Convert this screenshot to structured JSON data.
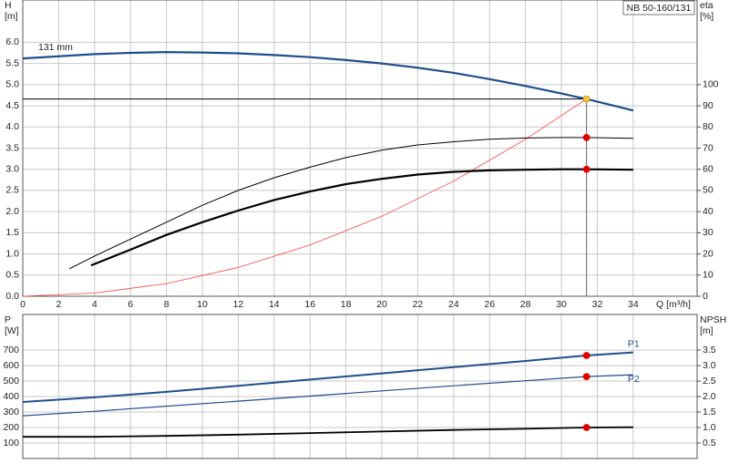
{
  "title": "NB 50-160/131",
  "chart_data": [
    {
      "type": "line",
      "ylabel": "H",
      "yunit": "[m]",
      "y2label": "eta",
      "y2unit": "[%]",
      "xlabel": "Q [m³/h]",
      "xlim": [
        0,
        37.56
      ],
      "xticks": [
        0,
        2,
        4,
        6,
        8,
        10,
        12,
        14,
        16,
        18,
        20,
        22,
        24,
        26,
        28,
        30,
        32,
        34
      ],
      "ylim": [
        0,
        7
      ],
      "yticks": [
        {
          "value": 0,
          "label": "0.0"
        },
        0.5,
        {
          "value": 1,
          "label": "1.0"
        },
        1.5,
        {
          "value": 2,
          "label": "2.0"
        },
        2.5,
        {
          "value": 3,
          "label": "3.0"
        },
        3.5,
        {
          "value": 4,
          "label": "4.0"
        },
        4.5,
        {
          "value": 5,
          "label": "5.0"
        },
        5.5,
        {
          "value": 6,
          "label": "6.0"
        }
      ],
      "y2lim": [
        0,
        140
      ],
      "y2ticks": [
        0,
        10,
        20,
        30,
        40,
        50,
        60,
        70,
        80,
        90,
        100
      ],
      "grid": true,
      "series": [
        {
          "name": "131 mm",
          "color": "#1f4e8c",
          "line_width": 2.2,
          "axis": "y",
          "x": [
            0,
            4,
            6,
            8,
            10,
            12,
            14,
            16,
            18,
            20,
            22,
            24,
            26,
            28,
            30,
            31.4,
            34
          ],
          "values": [
            5.62,
            5.72,
            5.75,
            5.77,
            5.76,
            5.74,
            5.7,
            5.65,
            5.58,
            5.5,
            5.4,
            5.28,
            5.13,
            4.97,
            4.79,
            4.66,
            4.39
          ]
        },
        {
          "color": "#ff4040",
          "line_width": 0.8,
          "axis": "y",
          "x": [
            0,
            4,
            8,
            12,
            16,
            20,
            24,
            28,
            31.4
          ],
          "values": [
            0,
            0.076,
            0.3,
            0.68,
            1.21,
            1.89,
            2.72,
            3.71,
            4.66
          ]
        },
        {
          "color": "#000000",
          "line_width": 1,
          "axis": "y2",
          "x": [
            2.6,
            4,
            6,
            8,
            10,
            12,
            14,
            16,
            18,
            20,
            22,
            24,
            26,
            28,
            30,
            31.4,
            34
          ],
          "values": [
            13,
            19,
            27,
            35,
            43,
            50,
            56,
            61,
            65.5,
            69,
            71.5,
            73,
            74.2,
            74.8,
            75,
            75,
            74.6
          ]
        },
        {
          "color": "#000000",
          "line_width": 2.2,
          "axis": "y2",
          "x": [
            3.8,
            6,
            8,
            10,
            12,
            14,
            16,
            18,
            20,
            22,
            24,
            26,
            28,
            30,
            31.4,
            34
          ],
          "values": [
            14.6,
            22,
            29,
            35,
            40.5,
            45.5,
            49.5,
            53,
            55.5,
            57.5,
            58.8,
            59.5,
            59.8,
            60,
            60,
            59.8
          ]
        }
      ],
      "markers": [
        {
          "x": 31.4,
          "y": 4.66,
          "axis": "y",
          "color": "#f5c542"
        },
        {
          "x": 31.4,
          "y": 75,
          "axis": "y2",
          "color": "#e00000"
        },
        {
          "x": 31.4,
          "y": 60,
          "axis": "y2",
          "color": "#e00000"
        }
      ]
    },
    {
      "type": "line",
      "ylabel": "P",
      "yunit": "[W]",
      "y2label": "NPSH",
      "y2unit": "[m]",
      "xlim": [
        0,
        37.56
      ],
      "ylim": [
        0,
        930
      ],
      "yticks": [
        100,
        200,
        300,
        400,
        500,
        600,
        700
      ],
      "y2lim": [
        0,
        4.65
      ],
      "y2ticks": [
        0.5,
        {
          "value": 1,
          "label": "1.0"
        },
        1.5,
        {
          "value": 2,
          "label": "2.0"
        },
        2.5,
        {
          "value": 3,
          "label": "3.0"
        },
        3.5
      ],
      "grid": true,
      "series": [
        {
          "name": "P1",
          "color": "#1f4e8c",
          "line_width": 2,
          "axis": "y",
          "x": [
            0,
            4,
            8,
            12,
            16,
            20,
            24,
            28,
            31.4,
            34
          ],
          "values": [
            365,
            395,
            430,
            470,
            510,
            550,
            590,
            630,
            665,
            685
          ]
        },
        {
          "name": "P2",
          "color": "#1f4e8c",
          "line_width": 1.2,
          "axis": "y",
          "x": [
            0,
            4,
            8,
            12,
            16,
            20,
            24,
            28,
            31.4,
            34
          ],
          "values": [
            276,
            305,
            338,
            370,
            403,
            437,
            470,
            502,
            529,
            541
          ]
        },
        {
          "color": "#000000",
          "line_width": 1.8,
          "axis": "y2",
          "x": [
            0,
            4,
            8,
            12,
            16,
            20,
            24,
            28,
            31.4,
            34
          ],
          "values": [
            0.7,
            0.7,
            0.73,
            0.77,
            0.82,
            0.87,
            0.92,
            0.96,
            1.0,
            1.01
          ]
        }
      ],
      "markers": [
        {
          "x": 31.4,
          "y": 665,
          "axis": "y",
          "color": "#e00000"
        },
        {
          "x": 31.4,
          "y": 529,
          "axis": "y",
          "color": "#e00000"
        },
        {
          "x": 31.4,
          "y": 1.0,
          "axis": "y2",
          "color": "#e00000"
        }
      ]
    }
  ]
}
